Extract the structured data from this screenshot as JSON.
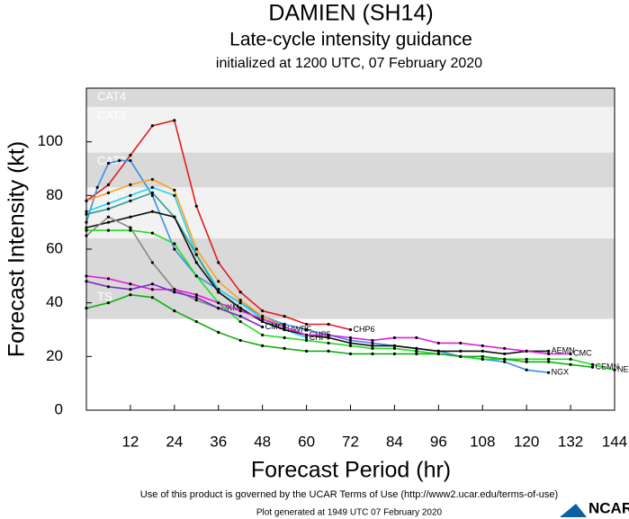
{
  "chart_data": {
    "type": "line",
    "title": "DAMIEN (SH14)",
    "subtitle": "Late-cycle intensity guidance",
    "subtitle2": "initialized at 1200 UTC, 07 February 2020",
    "x_label": "Forecast Period (hr)",
    "y_label": "Forecast Intensity (kt)",
    "xlim": [
      0,
      144
    ],
    "ylim": [
      0,
      120
    ],
    "xticks": [
      12,
      24,
      36,
      48,
      60,
      72,
      84,
      96,
      108,
      120,
      132,
      144
    ],
    "yticks": [
      0,
      20,
      40,
      60,
      80,
      100
    ],
    "bands": [
      {
        "label": "CAT4",
        "from": 113,
        "to": 120,
        "color": "#d9d9d9"
      },
      {
        "label": "CAT3",
        "from": 96,
        "to": 113,
        "color": "#f2f2f2"
      },
      {
        "label": "CAT2",
        "from": 83,
        "to": 96,
        "color": "#d9d9d9"
      },
      {
        "label": "CAT1",
        "from": 64,
        "to": 83,
        "color": "#f2f2f2"
      },
      {
        "label": "TS",
        "from": 34,
        "to": 64,
        "color": "#d9d9d9"
      }
    ],
    "series": [
      {
        "name": "CHP6",
        "color": "#e41a1c",
        "x": [
          0,
          6,
          12,
          18,
          24,
          30,
          36,
          42,
          48,
          54,
          60,
          66,
          72
        ],
        "values": [
          78,
          84,
          95,
          106,
          108,
          76,
          55,
          44,
          37,
          35,
          32,
          32,
          30
        ]
      },
      {
        "name": "NGX",
        "color": "#3a8ee6",
        "x": [
          0,
          3,
          6,
          9,
          12,
          18,
          24,
          30,
          36,
          42,
          48,
          54,
          60,
          66,
          72,
          78,
          84,
          90,
          96,
          102,
          108,
          114,
          120,
          126
        ],
        "values": [
          70,
          83,
          92,
          93,
          93,
          80,
          60,
          50,
          45,
          40,
          35,
          32,
          30,
          28,
          26,
          25,
          24,
          23,
          22,
          20,
          19,
          18,
          15,
          14
        ]
      },
      {
        "name": "CHP5",
        "color": "#ff9f1c",
        "x": [
          0,
          6,
          12,
          18,
          24,
          30,
          36,
          42,
          48,
          54,
          60
        ],
        "values": [
          78,
          81,
          84,
          86,
          82,
          60,
          48,
          41,
          35,
          31,
          28
        ]
      },
      {
        "name": "CHP7",
        "color": "#25d4e8",
        "x": [
          0,
          6,
          12,
          18,
          24,
          30,
          36,
          42,
          48,
          54,
          60
        ],
        "values": [
          74,
          77,
          80,
          83,
          80,
          58,
          45,
          40,
          34,
          30,
          27
        ]
      },
      {
        "name": "HWRF",
        "color": "#2a9d8f",
        "x": [
          0,
          6,
          12,
          18,
          24,
          30,
          36,
          42,
          48,
          54
        ],
        "values": [
          73,
          75,
          78,
          81,
          72,
          58,
          44,
          38,
          33,
          30
        ]
      },
      {
        "name": "AEMN",
        "color": "#111111",
        "x": [
          0,
          6,
          12,
          18,
          24,
          30,
          36,
          42,
          48,
          54,
          60,
          66,
          72,
          78,
          84,
          90,
          96,
          102,
          108,
          114,
          120,
          126
        ],
        "values": [
          68,
          70,
          72,
          74,
          72,
          55,
          44,
          38,
          33,
          30,
          28,
          27,
          25,
          24,
          24,
          23,
          22,
          22,
          22,
          21,
          22,
          22
        ]
      },
      {
        "name": "UKM",
        "color": "#888888",
        "x": [
          0,
          6,
          12,
          18,
          24,
          30,
          36
        ],
        "values": [
          65,
          72,
          68,
          55,
          45,
          41,
          38
        ]
      },
      {
        "name": "NEMN",
        "color": "#22dd22",
        "x": [
          0,
          6,
          12,
          18,
          24,
          30,
          36,
          42,
          48,
          54,
          60,
          66,
          72,
          78,
          84,
          90,
          96,
          102,
          108,
          114,
          120,
          126,
          132,
          138,
          144
        ],
        "values": [
          67,
          67,
          67,
          66,
          62,
          50,
          40,
          33,
          28,
          27,
          26,
          25,
          24,
          23,
          23,
          22,
          21,
          20,
          19,
          19,
          19,
          19,
          19,
          17,
          15
        ]
      },
      {
        "name": "CEMN",
        "color": "#10b010",
        "x": [
          0,
          6,
          12,
          18,
          24,
          30,
          36,
          42,
          48,
          54,
          60,
          66,
          72,
          78,
          84,
          90,
          96,
          102,
          108,
          114,
          120,
          126,
          132,
          138
        ],
        "values": [
          38,
          40,
          43,
          42,
          37,
          33,
          29,
          26,
          24,
          23,
          22,
          22,
          21,
          21,
          21,
          21,
          21,
          20,
          20,
          19,
          18,
          18,
          17,
          16
        ]
      },
      {
        "name": "CMC",
        "color": "#e020e0",
        "x": [
          0,
          6,
          12,
          18,
          24,
          30,
          36,
          42,
          48,
          54,
          60,
          66,
          72,
          78,
          84,
          90,
          96,
          102,
          108,
          114,
          120,
          126,
          132
        ],
        "values": [
          50,
          49,
          47,
          45,
          45,
          43,
          40,
          37,
          34,
          31,
          28,
          28,
          27,
          26,
          27,
          27,
          25,
          25,
          24,
          23,
          22,
          21,
          21
        ]
      },
      {
        "name": "CMO",
        "color": "#7b2fbe",
        "x": [
          0,
          6,
          12,
          18,
          24,
          30,
          36,
          42,
          48
        ],
        "values": [
          48,
          46,
          45,
          47,
          44,
          42,
          38,
          35,
          31
        ]
      }
    ],
    "footer": "Use of this product is governed by the UCAR Terms of Use (http://www2.ucar.edu/terms-of-use)",
    "generated": "Plot generated at 1949 UTC  07 February 2020",
    "logo": "NCAR"
  }
}
